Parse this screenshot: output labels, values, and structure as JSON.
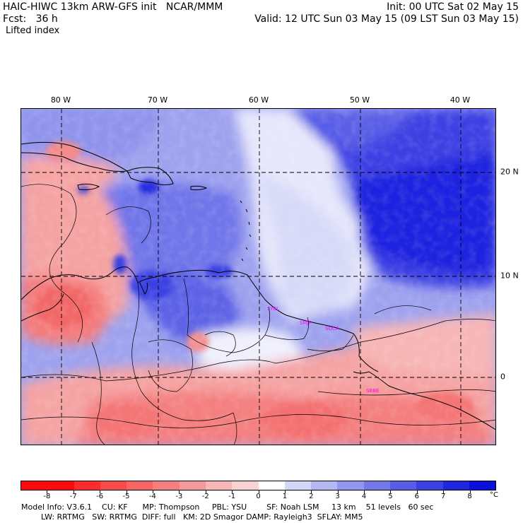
{
  "header": {
    "model_title": "HAIC-HIWC 13km ARW-GFS init   NCAR/MMM",
    "init": "Init: 00 UTC Sat 02 May 15",
    "fcst": "Fcst:   36 h",
    "valid": "Valid: 12 UTC Sun 03 May 15 (09 LST Sun 03 May 15)",
    "field": "Lifted index"
  },
  "map": {
    "lon_labels": [
      "80 W",
      "70 W",
      "60 W",
      "50 W",
      "40 W"
    ],
    "lat_labels": [
      "20 N",
      "10 N",
      "0"
    ],
    "stations": [
      "SYEL",
      "SMJP",
      "SOCA",
      "SBBE"
    ]
  },
  "colorbar": {
    "labels": [
      "-8",
      "-7",
      "-6",
      "-5",
      "-4",
      "-3",
      "-2",
      "-1",
      "0",
      "1",
      "2",
      "3",
      "4",
      "5",
      "6",
      "7",
      "8"
    ],
    "unit": "°C",
    "colors": [
      "#ff0a0a",
      "#fd2b2b",
      "#fb4a4a",
      "#f86464",
      "#f57f7f",
      "#f59a9a",
      "#f7b7b7",
      "#f9d2d2",
      "#ffffff",
      "#d4d6f7",
      "#b4b8f1",
      "#9296ec",
      "#7479ea",
      "#585ce6",
      "#3b40e3",
      "#2026e0",
      "#0a10dd"
    ]
  },
  "footer": {
    "line1": "Model Info: V3.6.1    CU: KF      MP: Thompson     PBL: YSU        SF: Noah LSM     13 km    51 levels   60 sec",
    "line2": "        LW: RRTMG   SW: RRTMG  DIFF: full   KM: 2D Smagor DAMP: Rayleigh3  SFLAY: MM5"
  }
}
